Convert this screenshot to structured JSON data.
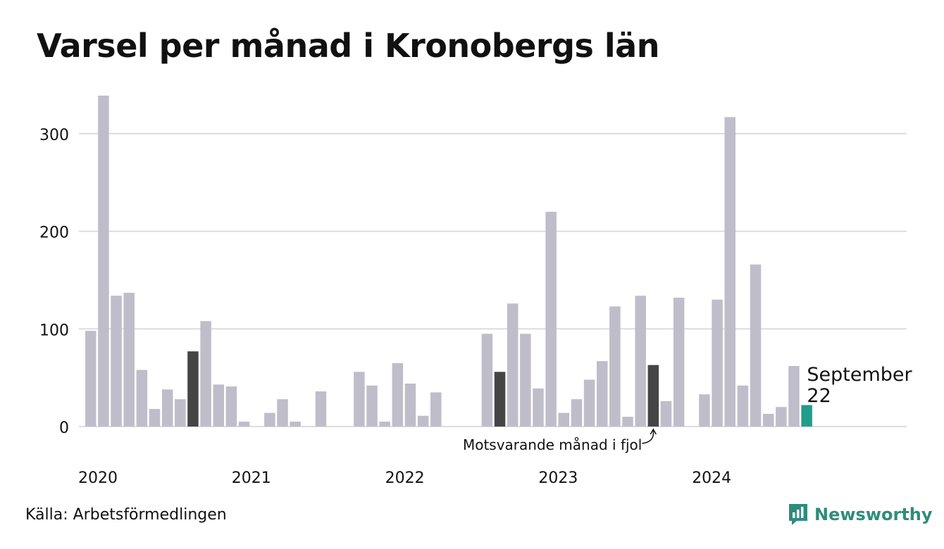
{
  "title": "Varsel per månad i Kronobergs län",
  "source": "Källa: Arbetsförmedlingen",
  "brand": {
    "name": "Newsworthy",
    "icon": "newsworthy-logo-icon"
  },
  "colors": {
    "bar": "#c0bdca",
    "highlight_prev_year": "#454545",
    "current": "#1f9e8a",
    "grid": "#dcdce3",
    "brand": "#2f8c7b"
  },
  "chart_data": {
    "type": "bar",
    "title": "Varsel per månad i Kronobergs län",
    "xlabel": "",
    "ylabel": "",
    "ylim": [
      0,
      340
    ],
    "yticks": [
      0,
      100,
      200,
      300
    ],
    "grid": true,
    "x_tick_labels": [
      "2020",
      "2021",
      "2022",
      "2023",
      "2024"
    ],
    "months": [
      "2020-01",
      "2020-02",
      "2020-03",
      "2020-04",
      "2020-05",
      "2020-06",
      "2020-07",
      "2020-08",
      "2020-09",
      "2020-10",
      "2020-11",
      "2020-12",
      "2021-01",
      "2021-02",
      "2021-03",
      "2021-04",
      "2021-05",
      "2021-06",
      "2021-07",
      "2021-08",
      "2021-09",
      "2021-10",
      "2021-11",
      "2021-12",
      "2022-01",
      "2022-02",
      "2022-03",
      "2022-04",
      "2022-05",
      "2022-06",
      "2022-07",
      "2022-08",
      "2022-09",
      "2022-10",
      "2022-11",
      "2022-12",
      "2023-01",
      "2023-02",
      "2023-03",
      "2023-04",
      "2023-05",
      "2023-06",
      "2023-07",
      "2023-08",
      "2023-09",
      "2023-10",
      "2023-11",
      "2023-12",
      "2024-01",
      "2024-02",
      "2024-03",
      "2024-04",
      "2024-05",
      "2024-06",
      "2024-07",
      "2024-08",
      "2024-09"
    ],
    "values": [
      98,
      339,
      134,
      137,
      58,
      18,
      38,
      28,
      77,
      108,
      43,
      41,
      5,
      0,
      14,
      28,
      5,
      0,
      36,
      0,
      0,
      56,
      42,
      5,
      65,
      44,
      11,
      35,
      0,
      0,
      0,
      95,
      56,
      126,
      95,
      39,
      220,
      14,
      28,
      48,
      67,
      123,
      10,
      134,
      63,
      26,
      132,
      0,
      33,
      130,
      317,
      42,
      166,
      13,
      20,
      62,
      22
    ],
    "highlight_months": [
      "2020-09",
      "2022-09",
      "2023-09"
    ],
    "current_month": "2024-09",
    "current_label": "September",
    "current_value": 22,
    "annotation": "Motsvarande månad i fjol"
  }
}
